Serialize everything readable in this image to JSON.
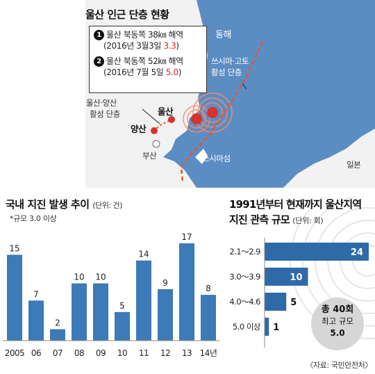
{
  "map": {
    "title": "울산 인근 단층 현황",
    "quake1": {
      "num": "1",
      "location": "울산 북동쪽 38㎞ 해역",
      "date": "(2016년 3월3일 ",
      "magnitude": "3.3",
      "close": ")"
    },
    "quake2": {
      "num": "2",
      "location": "울산 북동쪽 52㎞ 해역",
      "date": "(2016년 7월 5일 ",
      "magnitude": "5.0",
      "close": ")"
    },
    "labels": {
      "east_sea": "동해",
      "tsushima_fault_1": "쓰시마·고토",
      "tsushima_fault_2": "활성 단층",
      "ulsan_yangsan_1": "울산·양산",
      "ulsan_yangsan_2": "활성 단층",
      "ulsan": "울산",
      "yangsan": "양산",
      "busan": "부산",
      "tsushima_strait": "쓰시마섬",
      "japan": "일본"
    },
    "colors": {
      "sea": "#5b8dc3",
      "land": "#f2f2f2",
      "fault": "#e8542a",
      "epicenter": "#d9322a"
    }
  },
  "left_chart": {
    "title": "국내 지진 발생 추이",
    "unit": "(단위: 건)",
    "note": "*규모 3.0 이상"
  },
  "right_chart": {
    "title_line1": "1991년부터 현재까지 울산지역",
    "title_line2": "지진 관측 규모",
    "unit": "(단위: 회)",
    "total_label": "총 40회",
    "max_label": "최고 규모",
    "max_value": "5.0",
    "source": "〈자료: 국민안전처〉"
  },
  "chart_data": [
    {
      "type": "bar",
      "title": "국내 지진 발생 추이",
      "categories": [
        "2005",
        "06",
        "07",
        "08",
        "09",
        "10",
        "11",
        "12",
        "13",
        "14년"
      ],
      "values": [
        15,
        7,
        2,
        10,
        10,
        5,
        14,
        9,
        17,
        8
      ],
      "ylim": [
        0,
        17
      ],
      "bar_color": "#3d7ab8",
      "grid": false
    },
    {
      "type": "bar",
      "orientation": "horizontal",
      "title": "1991년부터 현재까지 울산지역 지진 관측 규모",
      "categories": [
        "2.1～2.9",
        "3.0～3.9",
        "4.0～4.6",
        "5.0 이상"
      ],
      "values": [
        24,
        10,
        5,
        1
      ],
      "xlim": [
        0,
        24
      ],
      "bar_color": "#2f6aa8",
      "grid": false
    }
  ]
}
